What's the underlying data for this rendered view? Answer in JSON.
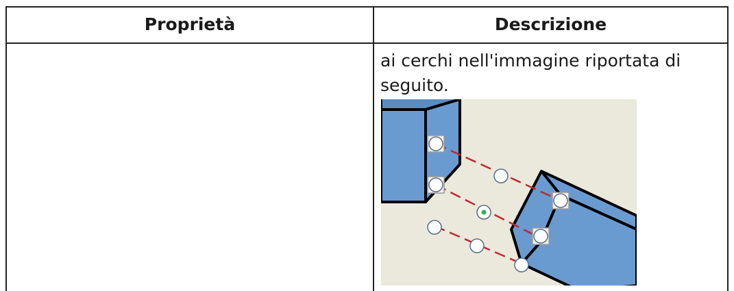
{
  "table": {
    "header": [
      "Proprietà",
      "Descrizione"
    ],
    "rows": [
      {
        "description": "ai cerchi nell'immagine riportata di seguito."
      }
    ]
  }
}
